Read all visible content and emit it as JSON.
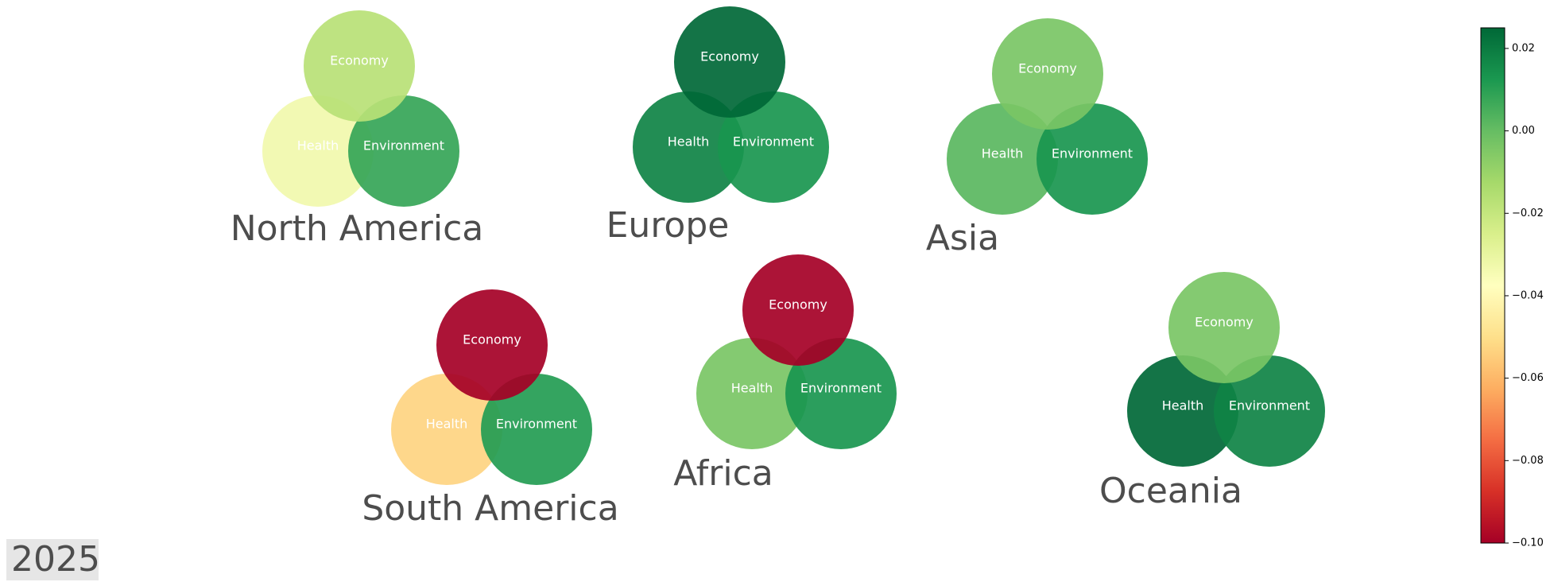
{
  "chart_data": {
    "type": "bubble-venn",
    "year_label": "2025",
    "colormap": "RdYlGn",
    "color_range": [
      -0.1,
      0.025
    ],
    "colorbar_ticks": [
      "0.02",
      "0.00",
      "−0.02",
      "−0.04",
      "−0.06",
      "−0.08",
      "−0.10"
    ],
    "colorbar_tick_values": [
      0.02,
      0.0,
      -0.02,
      -0.04,
      -0.06,
      -0.08,
      -0.1
    ],
    "groups": [
      {
        "name": "North America",
        "circles": [
          {
            "label": "Economy",
            "value": -0.017
          },
          {
            "label": "Health",
            "value": -0.033
          },
          {
            "label": "Environment",
            "value": 0.008
          }
        ]
      },
      {
        "name": "Europe",
        "circles": [
          {
            "label": "Economy",
            "value": 0.025
          },
          {
            "label": "Health",
            "value": 0.018
          },
          {
            "label": "Environment",
            "value": 0.013
          }
        ]
      },
      {
        "name": "Asia",
        "circles": [
          {
            "label": "Economy",
            "value": -0.004
          },
          {
            "label": "Health",
            "value": 0.002
          },
          {
            "label": "Environment",
            "value": 0.013
          }
        ]
      },
      {
        "name": "South America",
        "circles": [
          {
            "label": "Economy",
            "value": -0.1
          },
          {
            "label": "Health",
            "value": -0.053
          },
          {
            "label": "Environment",
            "value": 0.011
          }
        ]
      },
      {
        "name": "Africa",
        "circles": [
          {
            "label": "Economy",
            "value": -0.1
          },
          {
            "label": "Health",
            "value": -0.004
          },
          {
            "label": "Environment",
            "value": 0.013
          }
        ]
      },
      {
        "name": "Oceania",
        "circles": [
          {
            "label": "Economy",
            "value": -0.004
          },
          {
            "label": "Health",
            "value": 0.025
          },
          {
            "label": "Environment",
            "value": 0.018
          }
        ]
      }
    ]
  }
}
